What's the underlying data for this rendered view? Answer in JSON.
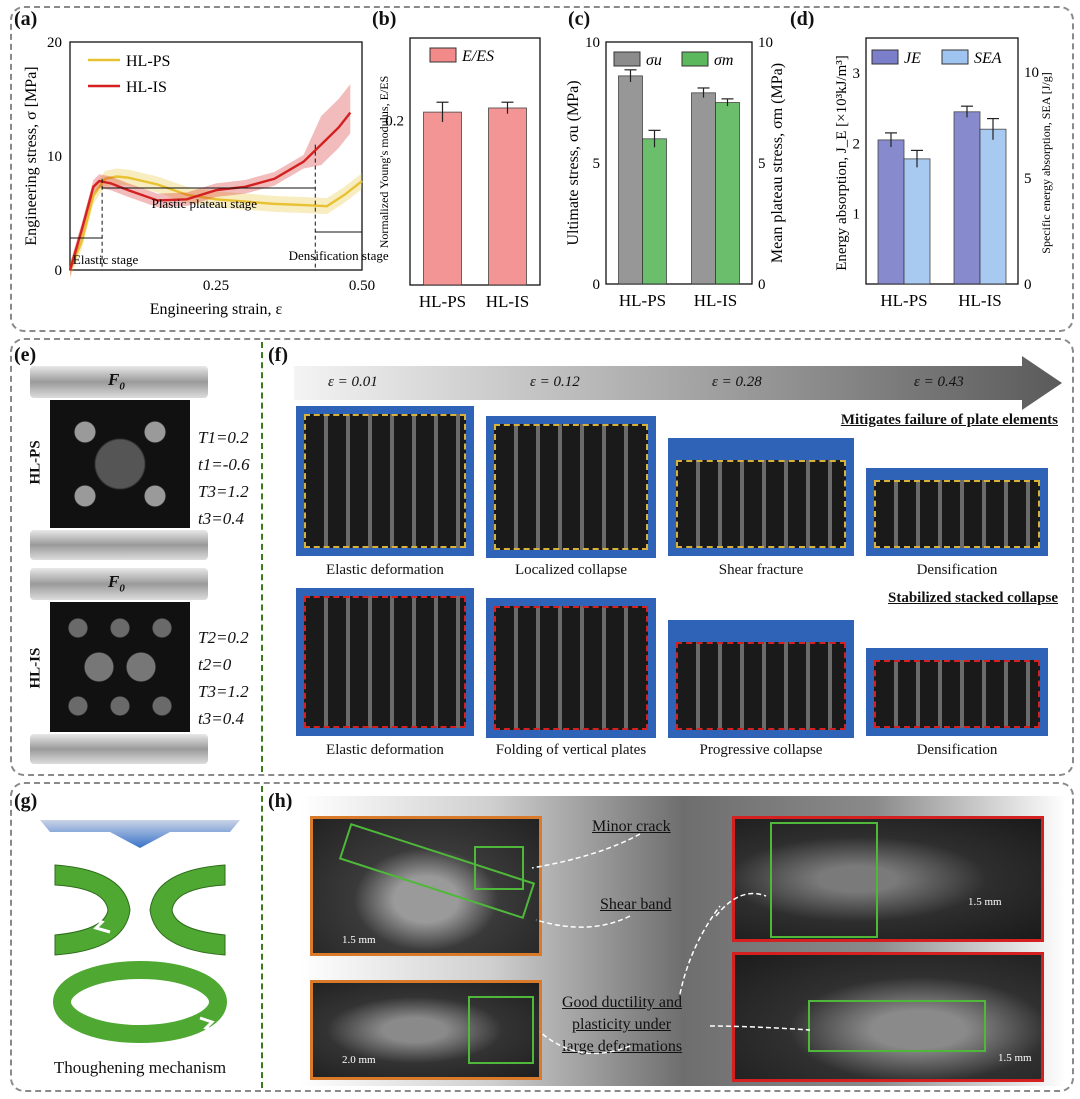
{
  "panels": {
    "a": "(a)",
    "b": "(b)",
    "c": "(c)",
    "d": "(d)",
    "e": "(e)",
    "f": "(f)",
    "g": "(g)",
    "h": "(h)"
  },
  "chart_data": [
    {
      "type": "line",
      "xlabel": "Engineering strain, ε",
      "ylabel": "Engineering stress, σ [MPa]",
      "xlim": [
        0,
        0.5
      ],
      "ylim": [
        0,
        20
      ],
      "xticks": [
        "0.25",
        "0.50"
      ],
      "yticks": [
        "0",
        "10",
        "20"
      ],
      "series": [
        {
          "name": "HL-PS",
          "color": "#e8c232",
          "x": [
            0,
            0.02,
            0.04,
            0.06,
            0.08,
            0.1,
            0.15,
            0.2,
            0.25,
            0.3,
            0.35,
            0.4,
            0.44,
            0.47,
            0.5
          ],
          "y": [
            0,
            2.5,
            6.5,
            8.0,
            8.2,
            8.1,
            7.5,
            6.6,
            6.2,
            6.0,
            5.8,
            5.7,
            5.6,
            6.6,
            7.8
          ]
        },
        {
          "name": "HL-IS",
          "color": "#d42020",
          "x": [
            0,
            0.02,
            0.04,
            0.05,
            0.07,
            0.1,
            0.15,
            0.2,
            0.25,
            0.3,
            0.35,
            0.4,
            0.43,
            0.46,
            0.48
          ],
          "y": [
            0,
            3.5,
            7.3,
            7.8,
            7.6,
            7.0,
            6.1,
            6.2,
            7.0,
            7.3,
            8.0,
            9.5,
            11.0,
            12.5,
            13.8
          ]
        }
      ],
      "annotations": [
        "Elastic stage",
        "Plastic plateau stage",
        "Densification stage"
      ]
    },
    {
      "type": "bar",
      "ylabel": "Normalized Young's modulus, E/E_S",
      "yticks": [
        "0.2"
      ],
      "categories": [
        "HL-PS",
        "HL-IS"
      ],
      "series": [
        {
          "name": "E/E_S",
          "color": "#f28a8a",
          "values": [
            0.21,
            0.215
          ],
          "errors": [
            0.012,
            0.007
          ]
        }
      ],
      "ylim": [
        0,
        0.3
      ]
    },
    {
      "type": "bar",
      "ylabel": "Ultimate stress, σu (MPa)",
      "ylabel_right": "Mean plateau stress, σm (MPa)",
      "yticks": [
        "0",
        "5",
        "10"
      ],
      "yticks_right": [
        "0",
        "5",
        "10"
      ],
      "categories": [
        "HL-PS",
        "HL-IS"
      ],
      "series": [
        {
          "name": "σu",
          "color": "#8c8c8c",
          "values": [
            8.6,
            7.9
          ],
          "errors": [
            0.25,
            0.2
          ]
        },
        {
          "name": "σm",
          "color": "#5cb85c",
          "values": [
            6.0,
            7.5
          ],
          "errors": [
            0.35,
            0.15
          ]
        }
      ],
      "ylim": [
        0,
        10
      ]
    },
    {
      "type": "bar",
      "ylabel": "Energy absorption, J_E [×10³kJ/m³]",
      "ylabel_right": "Specific energy absorption, SEA [J/g]",
      "yticks": [
        "1",
        "2",
        "3"
      ],
      "yticks_right": [
        "0",
        "5",
        "10"
      ],
      "categories": [
        "HL-PS",
        "HL-IS"
      ],
      "series": [
        {
          "name": "J_E",
          "color": "#7b7fc9",
          "values": [
            2.05,
            2.45
          ],
          "errors": [
            0.1,
            0.08
          ]
        },
        {
          "name": "SEA",
          "color": "#9fc4ef",
          "values": [
            5.9,
            7.3
          ],
          "errors": [
            0.4,
            0.5
          ]
        }
      ],
      "ylim": [
        0,
        3.5
      ],
      "ylim_right": [
        0,
        11.6
      ]
    }
  ],
  "e": {
    "force": "F0",
    "ps_label": "HL-PS",
    "is_label": "HL-IS",
    "ps_params": [
      "T1=0.2",
      "t1=-0.6",
      "T3=1.2",
      "t3=0.4"
    ],
    "is_params": [
      "T2=0.2",
      "t2=0",
      "T3=1.2",
      "t3=0.4"
    ]
  },
  "f": {
    "strains": [
      "ε = 0.01",
      "ε = 0.12",
      "ε = 0.28",
      "ε = 0.43"
    ],
    "top_title": "Mitigates failure of plate elements",
    "bottom_title": "Stabilized stacked collapse",
    "top_captions": [
      "Elastic deformation",
      "Localized collapse",
      "Shear fracture",
      "Densification"
    ],
    "bottom_captions": [
      "Elastic deformation",
      "Folding of vertical plates",
      "Progressive collapse",
      "Densification"
    ]
  },
  "g": {
    "caption": "Thoughening mechanism"
  },
  "h": {
    "notes": [
      "Minor crack",
      "Shear band",
      "Good ductility and",
      "plasticity under",
      "large deformations"
    ],
    "scales": [
      "1.5 mm",
      "2.0 mm",
      "1.5 mm",
      "1.5 mm"
    ]
  }
}
